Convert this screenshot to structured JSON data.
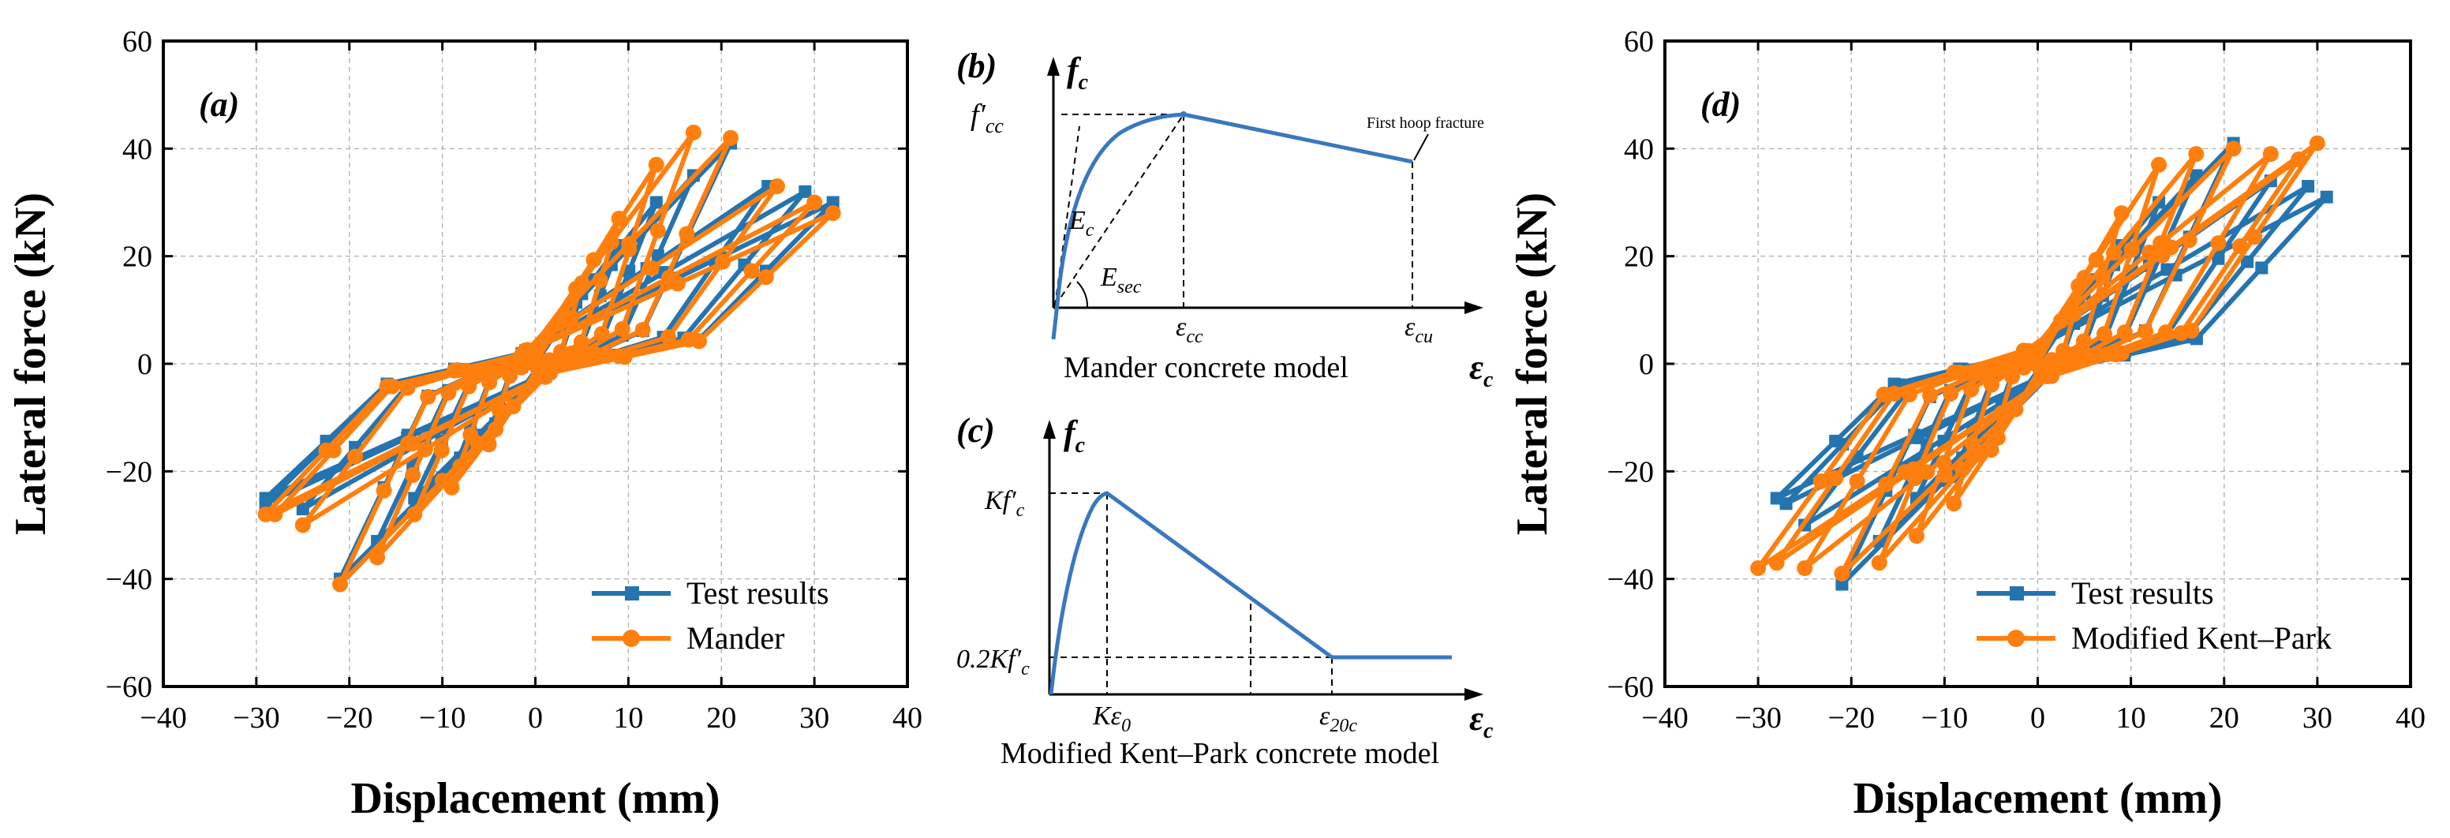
{
  "colors": {
    "test": "#2474b0",
    "model": "#ff7f0e",
    "curve": "#3a78be",
    "axis": "#000000",
    "grid": "#b8b8b8"
  },
  "chart_data": [
    {
      "id": "a",
      "type": "line",
      "panel_label": "(a)",
      "xlabel": "Displacement (mm)",
      "ylabel": "Lateral force (kN)",
      "xlim": [
        -40,
        40
      ],
      "ylim": [
        -60,
        60
      ],
      "xticks": [
        "−40",
        "−30",
        "−20",
        "−10",
        "0",
        "10",
        "20",
        "30",
        "40"
      ],
      "yticks": [
        "−60",
        "−40",
        "−20",
        "0",
        "20",
        "40",
        "60"
      ],
      "grid": true,
      "legend_position": "bottom-right",
      "series": [
        {
          "name": "Test results",
          "marker": "square",
          "amps": [
            [
              5,
              13,
              -5,
              -13
            ],
            [
              9,
              22,
              -9,
              -21
            ],
            [
              13,
              30,
              -13,
              -25
            ],
            [
              17,
              35,
              -17,
              -33
            ],
            [
              21,
              41,
              -21,
              -40
            ],
            [
              25,
              33,
              -25,
              -27
            ],
            [
              29,
              32,
              -29,
              -26
            ],
            [
              32,
              30,
              -29,
              -25
            ]
          ]
        },
        {
          "name": "Mander",
          "marker": "circle",
          "amps": [
            [
              5,
              15,
              -5,
              -15
            ],
            [
              9,
              27,
              -9,
              -23
            ],
            [
              13,
              37,
              -13,
              -28
            ],
            [
              17,
              43,
              -17,
              -36
            ],
            [
              21,
              42,
              -21,
              -41
            ],
            [
              26,
              33,
              -25,
              -30
            ],
            [
              30,
              30,
              -28,
              -28
            ],
            [
              32,
              28,
              -29,
              -28
            ]
          ]
        }
      ]
    },
    {
      "id": "d",
      "type": "line",
      "panel_label": "(d)",
      "xlabel": "Displacement (mm)",
      "ylabel": "Lateral force (kN)",
      "xlim": [
        -40,
        40
      ],
      "ylim": [
        -60,
        60
      ],
      "xticks": [
        "−40",
        "−30",
        "−20",
        "−10",
        "0",
        "10",
        "20",
        "30",
        "40"
      ],
      "yticks": [
        "−60",
        "−40",
        "−20",
        "0",
        "20",
        "40",
        "60"
      ],
      "grid": true,
      "legend_position": "bottom-right",
      "series": [
        {
          "name": "Test results",
          "marker": "square",
          "amps": [
            [
              5,
              13,
              -5,
              -13
            ],
            [
              9,
              22,
              -9,
              -21
            ],
            [
              13,
              30,
              -13,
              -25
            ],
            [
              17,
              35,
              -17,
              -33
            ],
            [
              21,
              41,
              -21,
              -41
            ],
            [
              25,
              34,
              -25,
              -30
            ],
            [
              29,
              33,
              -27,
              -26
            ],
            [
              31,
              31,
              -28,
              -25
            ]
          ]
        },
        {
          "name": "Modified Kent–Park",
          "marker": "circle",
          "amps": [
            [
              5,
              16,
              -5,
              -16
            ],
            [
              9,
              28,
              -9,
              -26
            ],
            [
              13,
              37,
              -13,
              -32
            ],
            [
              17,
              39,
              -17,
              -37
            ],
            [
              21,
              40,
              -21,
              -39
            ],
            [
              25,
              39,
              -25,
              -38
            ],
            [
              28,
              38,
              -28,
              -37
            ],
            [
              30,
              41,
              -30,
              -38
            ]
          ]
        }
      ]
    }
  ],
  "diagram_b": {
    "label": "(b)",
    "y_axis_label": "f",
    "y_axis_sub": "c",
    "x_axis_label": "ε",
    "x_axis_sub": "c",
    "peak_label": "f′",
    "peak_sub": "cc",
    "ec_label": "E",
    "ec_sub": "c",
    "esec_label": "E",
    "esec_sub": "sec",
    "ecc_label": "ε",
    "ecc_sub": "cc",
    "ecu_label": "ε",
    "ecu_sub": "cu",
    "annotation": "First hoop fracture",
    "caption": "Mander concrete model"
  },
  "diagram_c": {
    "label": "(c)",
    "y_axis_label": "f",
    "y_axis_sub": "c",
    "x_axis_label": "ε",
    "x_axis_sub": "c",
    "peak_label": "Kf′",
    "peak_sub": "c",
    "residual_label": "0.2Kf′",
    "residual_sub": "c",
    "k_eps_label": "Kε",
    "k_eps_sub": "0",
    "e20_label": "ε",
    "e20_sub": "20c",
    "caption": "Modified Kent–Park concrete model"
  }
}
